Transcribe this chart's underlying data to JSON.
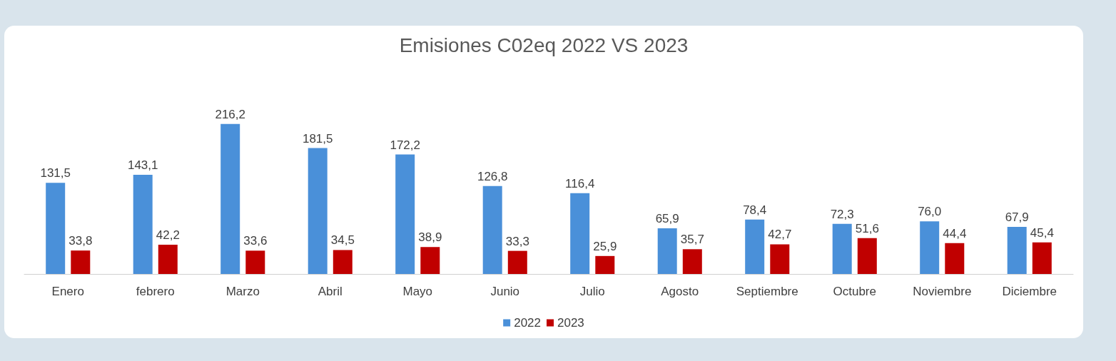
{
  "chart_data": {
    "type": "bar",
    "title": "Emisiones C02eq 2022 VS 2023",
    "categories": [
      "Enero",
      "febrero",
      "Marzo",
      "Abril",
      "Mayo",
      "Junio",
      "Julio",
      "Agosto",
      "Septiembre",
      "Octubre",
      "Noviembre",
      "Diciembre"
    ],
    "series": [
      {
        "name": "2022",
        "color": "#4a90d9",
        "values": [
          131.5,
          143.1,
          216.2,
          181.5,
          172.2,
          126.8,
          116.4,
          65.9,
          78.4,
          72.3,
          76.0,
          67.9
        ],
        "value_labels": [
          "131,5",
          "143,1",
          "216,2",
          "181,5",
          "172,2",
          "126,8",
          "116,4",
          "65,9",
          "78,4",
          "72,3",
          "76,0",
          "67,9"
        ]
      },
      {
        "name": "2023",
        "color": "#c00000",
        "values": [
          33.8,
          42.2,
          33.6,
          34.5,
          38.9,
          33.3,
          25.9,
          35.7,
          42.7,
          51.6,
          44.4,
          45.4
        ],
        "value_labels": [
          "33,8",
          "42,2",
          "33,6",
          "34,5",
          "38,9",
          "33,3",
          "25,9",
          "35,7",
          "42,7",
          "51,6",
          "44,4",
          "45,4"
        ]
      }
    ],
    "legend": "bottom",
    "grid": false,
    "tick_labels": "x"
  }
}
